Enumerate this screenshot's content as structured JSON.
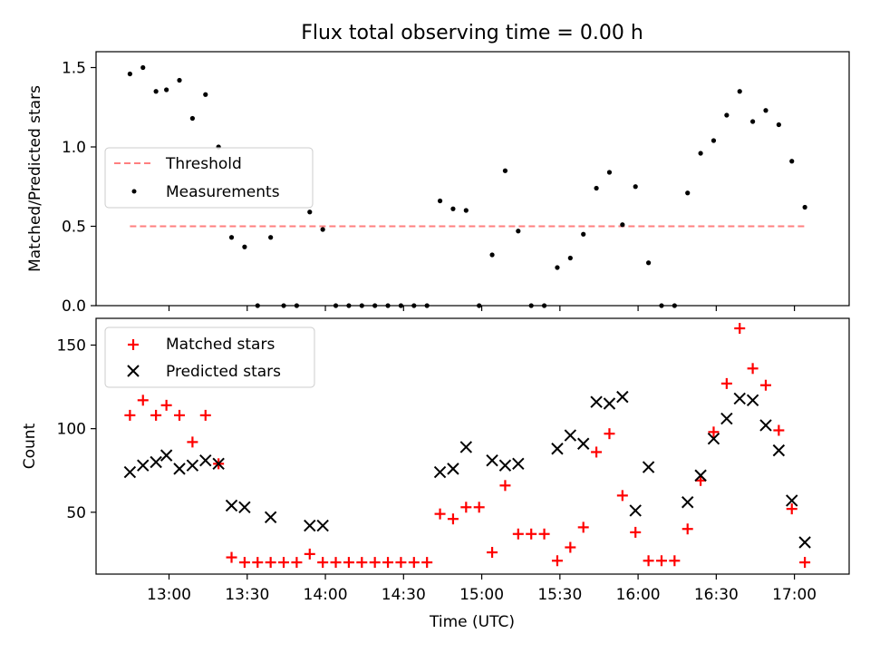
{
  "chart_data": [
    {
      "type": "scatter",
      "title": "Flux total observing time = 0.00 h",
      "ylabel": "Matched/Predicted stars",
      "xlabel": "",
      "xlim": [
        "12:32",
        "17:21"
      ],
      "ylim": [
        0,
        1.6
      ],
      "yticks": [
        "0.0",
        "0.5",
        "1.0",
        "1.5"
      ],
      "xticks": [
        "13:00",
        "13:30",
        "14:00",
        "14:30",
        "15:00",
        "15:30",
        "16:00",
        "16:30",
        "17:00"
      ],
      "legend_position": "center-left",
      "series": [
        {
          "name": "Threshold",
          "style": "dashed-line",
          "color": "#ff7f7f",
          "x": [
            "12:45",
            "17:05"
          ],
          "y": [
            0.5,
            0.5
          ]
        },
        {
          "name": "Measurements",
          "style": "dot",
          "color": "#000000",
          "points": [
            [
              "12:45",
              1.46
            ],
            [
              "12:50",
              1.5
            ],
            [
              "12:55",
              1.35
            ],
            [
              "12:59",
              1.36
            ],
            [
              "13:04",
              1.42
            ],
            [
              "13:09",
              1.18
            ],
            [
              "13:14",
              1.33
            ],
            [
              "13:19",
              1.0
            ],
            [
              "13:24",
              0.43
            ],
            [
              "13:29",
              0.37
            ],
            [
              "13:34",
              0.0
            ],
            [
              "13:39",
              0.43
            ],
            [
              "13:44",
              0.0
            ],
            [
              "13:49",
              0.0
            ],
            [
              "13:54",
              0.59
            ],
            [
              "13:59",
              0.48
            ],
            [
              "14:04",
              0.0
            ],
            [
              "14:09",
              0.0
            ],
            [
              "14:14",
              0.0
            ],
            [
              "14:19",
              0.0
            ],
            [
              "14:24",
              0.0
            ],
            [
              "14:29",
              0.0
            ],
            [
              "14:34",
              0.0
            ],
            [
              "14:39",
              0.0
            ],
            [
              "14:44",
              0.66
            ],
            [
              "14:49",
              0.61
            ],
            [
              "14:54",
              0.6
            ],
            [
              "14:59",
              0.0
            ],
            [
              "15:04",
              0.32
            ],
            [
              "15:09",
              0.85
            ],
            [
              "15:14",
              0.47
            ],
            [
              "15:19",
              0.0
            ],
            [
              "15:24",
              0.0
            ],
            [
              "15:29",
              0.24
            ],
            [
              "15:34",
              0.3
            ],
            [
              "15:39",
              0.45
            ],
            [
              "15:44",
              0.74
            ],
            [
              "15:49",
              0.84
            ],
            [
              "15:54",
              0.51
            ],
            [
              "15:59",
              0.75
            ],
            [
              "16:04",
              0.27
            ],
            [
              "16:09",
              0.0
            ],
            [
              "16:14",
              0.0
            ],
            [
              "16:19",
              0.71
            ],
            [
              "16:24",
              0.96
            ],
            [
              "16:29",
              1.04
            ],
            [
              "16:34",
              1.2
            ],
            [
              "16:39",
              1.35
            ],
            [
              "16:44",
              1.16
            ],
            [
              "16:49",
              1.23
            ],
            [
              "16:54",
              1.14
            ],
            [
              "16:59",
              0.91
            ],
            [
              "17:04",
              0.62
            ]
          ]
        }
      ]
    },
    {
      "type": "scatter",
      "title": "",
      "ylabel": "Count",
      "xlabel": "Time (UTC)",
      "xlim": [
        "12:32",
        "17:21"
      ],
      "ylim": [
        13,
        166
      ],
      "yticks": [
        "50",
        "100",
        "150"
      ],
      "xticks": [
        "13:00",
        "13:30",
        "14:00",
        "14:30",
        "15:00",
        "15:30",
        "16:00",
        "16:30",
        "17:00"
      ],
      "legend_position": "top-left",
      "series": [
        {
          "name": "Matched stars",
          "style": "plus",
          "color": "#ff0000",
          "points": [
            [
              "12:45",
              108
            ],
            [
              "12:50",
              117
            ],
            [
              "12:55",
              108
            ],
            [
              "12:59",
              114
            ],
            [
              "13:04",
              108
            ],
            [
              "13:09",
              92
            ],
            [
              "13:14",
              108
            ],
            [
              "13:19",
              79
            ],
            [
              "13:24",
              23
            ],
            [
              "13:29",
              20
            ],
            [
              "13:34",
              20
            ],
            [
              "13:39",
              20
            ],
            [
              "13:44",
              20
            ],
            [
              "13:49",
              20
            ],
            [
              "13:54",
              25
            ],
            [
              "13:59",
              20
            ],
            [
              "14:04",
              20
            ],
            [
              "14:09",
              20
            ],
            [
              "14:14",
              20
            ],
            [
              "14:19",
              20
            ],
            [
              "14:24",
              20
            ],
            [
              "14:29",
              20
            ],
            [
              "14:34",
              20
            ],
            [
              "14:39",
              20
            ],
            [
              "14:44",
              49
            ],
            [
              "14:49",
              46
            ],
            [
              "14:54",
              53
            ],
            [
              "14:59",
              53
            ],
            [
              "15:04",
              26
            ],
            [
              "15:09",
              66
            ],
            [
              "15:14",
              37
            ],
            [
              "15:19",
              37
            ],
            [
              "15:24",
              37
            ],
            [
              "15:29",
              21
            ],
            [
              "15:34",
              29
            ],
            [
              "15:39",
              41
            ],
            [
              "15:44",
              86
            ],
            [
              "15:49",
              97
            ],
            [
              "15:54",
              60
            ],
            [
              "15:59",
              38
            ],
            [
              "16:04",
              21
            ],
            [
              "16:09",
              21
            ],
            [
              "16:14",
              21
            ],
            [
              "16:19",
              40
            ],
            [
              "16:24",
              69
            ],
            [
              "16:29",
              98
            ],
            [
              "16:34",
              127
            ],
            [
              "16:39",
              160
            ],
            [
              "16:44",
              136
            ],
            [
              "16:49",
              126
            ],
            [
              "16:54",
              99
            ],
            [
              "16:59",
              52
            ],
            [
              "17:04",
              20
            ]
          ]
        },
        {
          "name": "Predicted stars",
          "style": "x",
          "color": "#000000",
          "points": [
            [
              "12:45",
              74
            ],
            [
              "12:50",
              78
            ],
            [
              "12:55",
              80
            ],
            [
              "12:59",
              84
            ],
            [
              "13:04",
              76
            ],
            [
              "13:09",
              78
            ],
            [
              "13:14",
              81
            ],
            [
              "13:19",
              79
            ],
            [
              "13:24",
              54
            ],
            [
              "13:29",
              53
            ],
            [
              "13:39",
              47
            ],
            [
              "13:54",
              42
            ],
            [
              "13:59",
              42
            ],
            [
              "14:44",
              74
            ],
            [
              "14:49",
              76
            ],
            [
              "14:54",
              89
            ],
            [
              "15:04",
              81
            ],
            [
              "15:09",
              78
            ],
            [
              "15:14",
              79
            ],
            [
              "15:29",
              88
            ],
            [
              "15:34",
              96
            ],
            [
              "15:39",
              91
            ],
            [
              "15:44",
              116
            ],
            [
              "15:49",
              115
            ],
            [
              "15:54",
              119
            ],
            [
              "15:59",
              51
            ],
            [
              "16:04",
              77
            ],
            [
              "16:19",
              56
            ],
            [
              "16:24",
              72
            ],
            [
              "16:29",
              94
            ],
            [
              "16:34",
              106
            ],
            [
              "16:39",
              118
            ],
            [
              "16:44",
              117
            ],
            [
              "16:49",
              102
            ],
            [
              "16:54",
              87
            ],
            [
              "16:59",
              57
            ],
            [
              "17:04",
              32
            ]
          ]
        }
      ]
    }
  ]
}
